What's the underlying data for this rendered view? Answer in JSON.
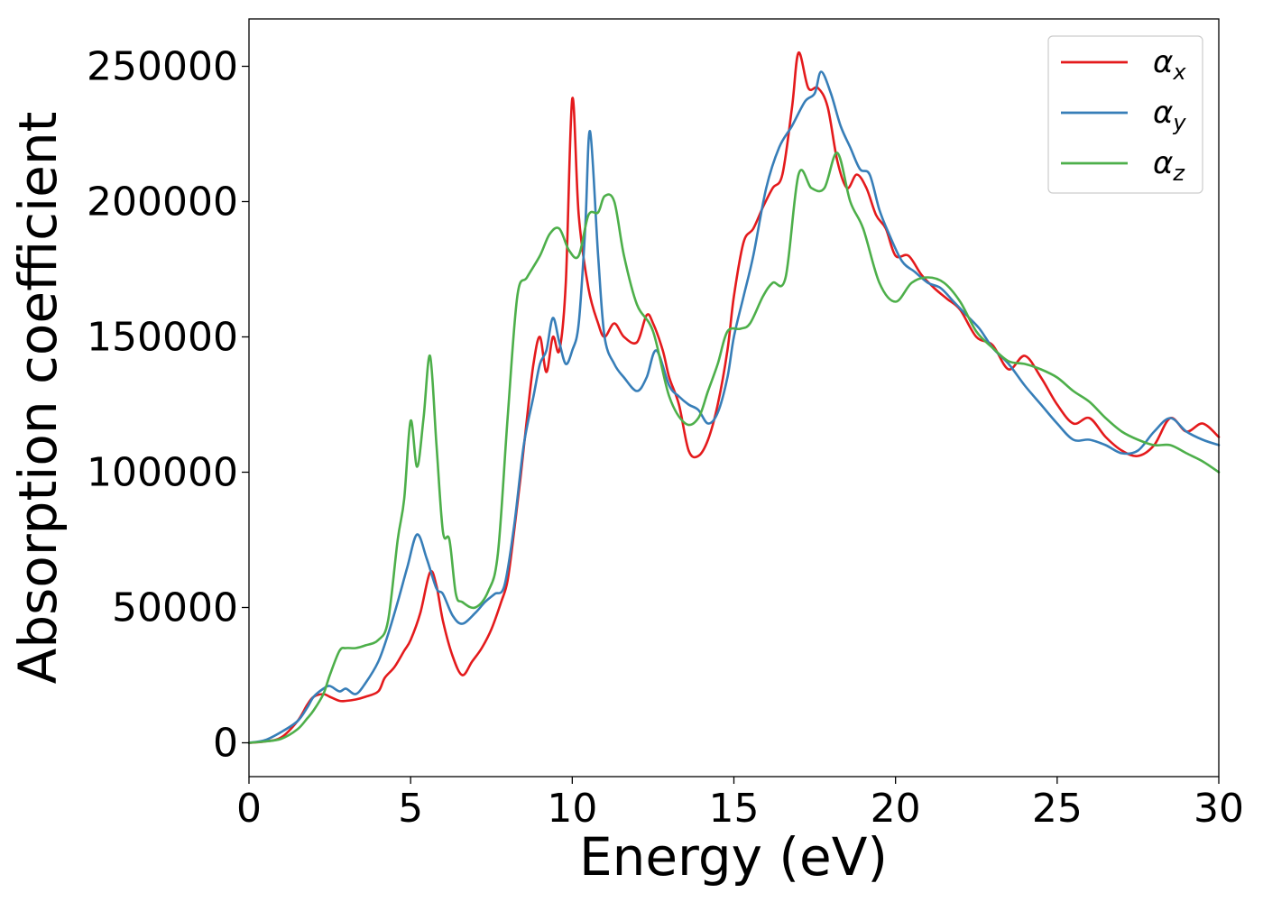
{
  "chart_data": {
    "type": "line",
    "title": "",
    "xlabel": "Energy (eV)",
    "ylabel": "Absorption coefficient",
    "xlim": [
      0,
      30
    ],
    "ylim": [
      -12500,
      267500
    ],
    "xticks": [
      0,
      5,
      10,
      15,
      20,
      25,
      30
    ],
    "xtick_labels": [
      "0",
      "5",
      "10",
      "15",
      "20",
      "25",
      "30"
    ],
    "yticks": [
      0,
      50000,
      100000,
      150000,
      200000,
      250000
    ],
    "ytick_labels": [
      "0",
      "50000",
      "100000",
      "150000",
      "200000",
      "250000"
    ],
    "grid": false,
    "legend_position": "top-right",
    "series": [
      {
        "name": "α_x",
        "symbol": "α",
        "subscript": "x",
        "color": "#e41a1c",
        "x": [
          0,
          0.5,
          1,
          1.5,
          1.8,
          2,
          2.3,
          2.5,
          2.8,
          3,
          3.3,
          3.6,
          4,
          4.2,
          4.5,
          4.8,
          5,
          5.3,
          5.6,
          5.8,
          6,
          6.3,
          6.6,
          6.9,
          7.2,
          7.5,
          7.8,
          8,
          8.2,
          8.4,
          8.6,
          8.8,
          9,
          9.2,
          9.4,
          9.6,
          9.8,
          10,
          10.2,
          10.5,
          10.8,
          11,
          11.3,
          11.6,
          12,
          12.3,
          12.5,
          12.8,
          13,
          13.3,
          13.6,
          13.9,
          14.2,
          14.5,
          14.8,
          15,
          15.3,
          15.6,
          15.9,
          16.2,
          16.5,
          16.8,
          17,
          17.3,
          17.6,
          17.9,
          18.2,
          18.5,
          18.8,
          19.1,
          19.4,
          19.7,
          20,
          20.4,
          20.8,
          21.2,
          21.6,
          22,
          22.5,
          23,
          23.5,
          24,
          24.5,
          25,
          25.5,
          26,
          26.5,
          27,
          27.5,
          28,
          28.5,
          29,
          29.5,
          30
        ],
        "y": [
          0,
          500,
          2000,
          8000,
          14000,
          17000,
          18000,
          17000,
          15500,
          15500,
          16000,
          17000,
          19000,
          24000,
          28000,
          34000,
          38000,
          48000,
          63000,
          58000,
          45000,
          32000,
          25000,
          30000,
          35000,
          42000,
          52000,
          60000,
          78000,
          98000,
          120000,
          140000,
          150000,
          137000,
          150000,
          145000,
          170000,
          238000,
          195000,
          168000,
          155000,
          150000,
          155000,
          150000,
          148000,
          158000,
          155000,
          145000,
          135000,
          125000,
          108000,
          106000,
          112000,
          125000,
          145000,
          165000,
          185000,
          190000,
          198000,
          205000,
          210000,
          235000,
          255000,
          242000,
          242000,
          235000,
          215000,
          205000,
          210000,
          205000,
          195000,
          190000,
          180000,
          180000,
          173000,
          168000,
          164000,
          160000,
          150000,
          147000,
          138000,
          143000,
          135000,
          125000,
          118000,
          120000,
          113000,
          108000,
          106000,
          110000,
          120000,
          115000,
          118000,
          113000
        ]
      },
      {
        "name": "α_y",
        "symbol": "α",
        "subscript": "y",
        "color": "#377eb8",
        "x": [
          0,
          0.5,
          1,
          1.5,
          1.8,
          2,
          2.3,
          2.5,
          2.8,
          3,
          3.3,
          3.6,
          4,
          4.3,
          4.6,
          4.9,
          5.2,
          5.5,
          5.8,
          6,
          6.3,
          6.6,
          7,
          7.3,
          7.6,
          7.9,
          8.2,
          8.5,
          8.8,
          9,
          9.2,
          9.4,
          9.6,
          9.8,
          10,
          10.2,
          10.4,
          10.55,
          10.8,
          11,
          11.3,
          11.6,
          12,
          12.3,
          12.6,
          13,
          13.3,
          13.6,
          13.9,
          14.2,
          14.5,
          14.8,
          15,
          15.3,
          15.6,
          16,
          16.4,
          16.8,
          17.2,
          17.5,
          17.7,
          18,
          18.3,
          18.6,
          18.9,
          19.2,
          19.5,
          19.8,
          20.2,
          20.6,
          21,
          21.4,
          21.8,
          22.2,
          22.6,
          23,
          23.5,
          24,
          24.5,
          25,
          25.5,
          26,
          26.5,
          27,
          27.5,
          28,
          28.5,
          29,
          29.5,
          30
        ],
        "y": [
          0,
          1000,
          4000,
          8000,
          13000,
          17000,
          20000,
          21000,
          19000,
          20000,
          18000,
          22000,
          30000,
          40000,
          52000,
          65000,
          77000,
          68000,
          57000,
          55000,
          47000,
          44000,
          48000,
          52000,
          55000,
          58000,
          80000,
          110000,
          128000,
          140000,
          145000,
          157000,
          148000,
          140000,
          145000,
          155000,
          190000,
          226000,
          180000,
          150000,
          140000,
          135000,
          130000,
          135000,
          145000,
          132000,
          128000,
          125000,
          123000,
          118000,
          122000,
          135000,
          150000,
          165000,
          180000,
          205000,
          220000,
          228000,
          237000,
          240000,
          248000,
          240000,
          228000,
          220000,
          212000,
          210000,
          197000,
          188000,
          178000,
          174000,
          170000,
          168000,
          163000,
          158000,
          153000,
          146000,
          140000,
          132000,
          125000,
          118000,
          112000,
          112000,
          110000,
          107000,
          108000,
          115000,
          120000,
          115000,
          112000,
          110000
        ]
      },
      {
        "name": "α_z",
        "symbol": "α",
        "subscript": "z",
        "color": "#4daf4a",
        "x": [
          0,
          0.5,
          1,
          1.5,
          1.8,
          2,
          2.3,
          2.5,
          2.8,
          3,
          3.3,
          3.6,
          4,
          4.3,
          4.6,
          4.8,
          5,
          5.2,
          5.4,
          5.6,
          5.8,
          6,
          6.2,
          6.4,
          6.6,
          7,
          7.4,
          7.7,
          8,
          8.3,
          8.6,
          9,
          9.3,
          9.6,
          9.9,
          10.2,
          10.5,
          10.8,
          11,
          11.3,
          11.6,
          12,
          12.5,
          13,
          13.5,
          13.9,
          14.2,
          14.5,
          14.8,
          15.2,
          15.5,
          15.9,
          16.2,
          16.6,
          17,
          17.4,
          17.8,
          18.2,
          18.6,
          19,
          19.5,
          20,
          20.5,
          21,
          21.5,
          22,
          22.5,
          23,
          23.5,
          24,
          24.5,
          25,
          25.5,
          26,
          26.5,
          27,
          27.5,
          28,
          28.5,
          29,
          29.5,
          30
        ],
        "y": [
          0,
          500,
          1500,
          5000,
          9000,
          12000,
          18000,
          25000,
          34000,
          35000,
          35000,
          36000,
          38000,
          45000,
          75000,
          90000,
          119000,
          102000,
          120000,
          143000,
          110000,
          78000,
          75000,
          55000,
          52000,
          50000,
          56000,
          70000,
          120000,
          165000,
          172000,
          180000,
          188000,
          190000,
          182000,
          180000,
          195000,
          196000,
          202000,
          200000,
          180000,
          162000,
          152000,
          128000,
          118000,
          120000,
          130000,
          140000,
          152000,
          153000,
          155000,
          165000,
          170000,
          172000,
          210000,
          205000,
          205000,
          218000,
          200000,
          190000,
          170000,
          163000,
          170000,
          172000,
          170000,
          163000,
          152000,
          146000,
          141000,
          140000,
          138000,
          135000,
          130000,
          126000,
          120000,
          115000,
          112000,
          110000,
          110000,
          107000,
          104000,
          100000
        ]
      }
    ]
  }
}
